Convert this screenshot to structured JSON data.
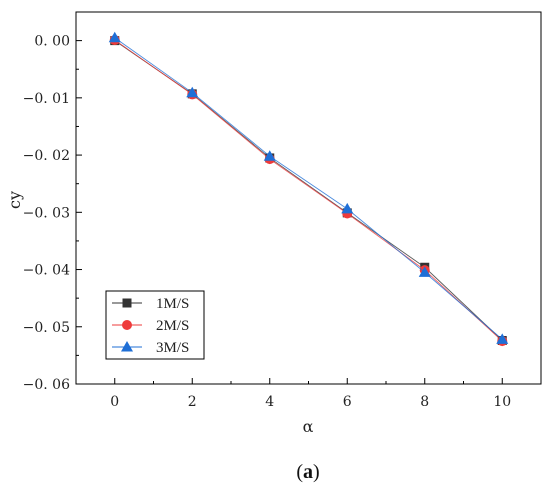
{
  "chart_data": {
    "type": "line",
    "xlabel": "α",
    "ylabel": "cy",
    "x": [
      0,
      2,
      4,
      6,
      8,
      10
    ],
    "xlim": [
      -1,
      11
    ],
    "ylim": [
      -0.06,
      0.005
    ],
    "xticks": [
      0,
      2,
      4,
      6,
      8,
      10
    ],
    "yticks": [
      0.0,
      -0.01,
      -0.02,
      -0.03,
      -0.04,
      -0.05,
      -0.06
    ],
    "ytick_labels": [
      "0. 00",
      "−0. 01",
      "−0. 02",
      "−0. 03",
      "−0. 04",
      "−0. 05",
      "−0. 06"
    ],
    "legend_position": "bottom-left",
    "series": [
      {
        "name": "1M/S",
        "marker": "square",
        "color": "#333333",
        "values": [
          0.0,
          -0.0093,
          -0.0205,
          -0.0301,
          -0.0396,
          -0.0524
        ]
      },
      {
        "name": "2M/S",
        "marker": "circle",
        "color": "#ee3b3b",
        "values": [
          0.0001,
          -0.0094,
          -0.0207,
          -0.0302,
          -0.0401,
          -0.0525
        ]
      },
      {
        "name": "3M/S",
        "marker": "triangle",
        "color": "#1f6fd6",
        "values": [
          0.0005,
          -0.0091,
          -0.0202,
          -0.0294,
          -0.0405,
          -0.0522
        ]
      }
    ]
  },
  "caption": {
    "open": "(",
    "letter": "a",
    "close": ")"
  }
}
